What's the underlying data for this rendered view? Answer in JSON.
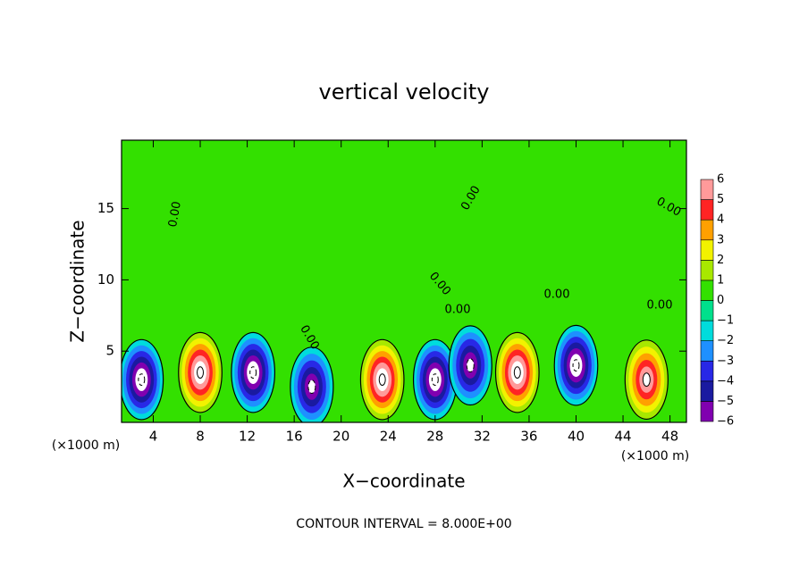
{
  "chart_data": {
    "type": "contour",
    "title": "vertical velocity",
    "xlabel": "X−coordinate",
    "ylabel": "Z−coordinate",
    "x_unit": "(×1000 m)",
    "footer": "CONTOUR INTERVAL = 8.000E+00",
    "contour_label": "0.00",
    "xlim": [
      1.3,
      49.4
    ],
    "ylim": [
      0,
      19.8
    ],
    "xticks": [
      4,
      8,
      12,
      16,
      20,
      24,
      28,
      32,
      36,
      40,
      44,
      48
    ],
    "yticks": [
      5,
      10,
      15
    ],
    "levels": [
      {
        "value": -6,
        "label": "−6"
      },
      {
        "value": -5,
        "label": "−5"
      },
      {
        "value": -4,
        "label": "−4"
      },
      {
        "value": -3,
        "label": "−3"
      },
      {
        "value": -2,
        "label": "−2"
      },
      {
        "value": -1,
        "label": "−1"
      },
      0,
      1,
      2,
      3,
      4,
      5,
      6
    ],
    "colors": [
      "#8000b0",
      "#1a1aa0",
      "#2828e6",
      "#1e90ff",
      "#00dcdc",
      "#00e08c",
      "#33e000",
      "#a8e800",
      "#f2f200",
      "#ffa000",
      "#ff2424",
      "#ff9a9a"
    ],
    "features": {
      "x": [
        3,
        8,
        12.5,
        17.5,
        23.5,
        28,
        31,
        35,
        40,
        46
      ],
      "z": [
        3,
        3.5,
        3.5,
        2.5,
        3,
        3,
        4,
        3.5,
        4,
        3
      ],
      "values": [
        -6,
        6,
        -6,
        -5,
        6,
        -6,
        -5,
        6,
        -6,
        5
      ]
    }
  }
}
